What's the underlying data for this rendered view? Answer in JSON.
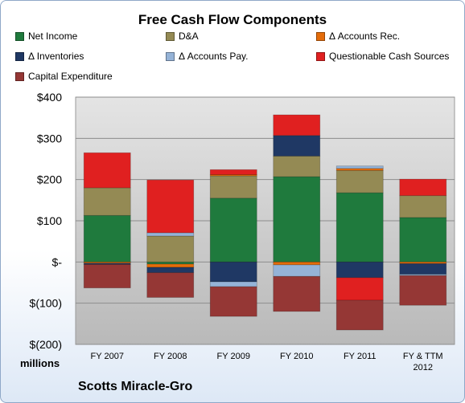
{
  "chart_data": {
    "type": "bar",
    "stacked": true,
    "title": "Free Cash Flow Components",
    "y_unit_label": "millions",
    "source_label": "Scotts Miracle-Gro",
    "categories": [
      [
        "FY 2007"
      ],
      [
        "FY 2008"
      ],
      [
        "FY 2009"
      ],
      [
        "FY 2010"
      ],
      [
        "FY 2011"
      ],
      [
        "FY & TTM",
        "2012"
      ]
    ],
    "ylim": [
      -200,
      400
    ],
    "yticks": [
      {
        "value": 400,
        "label": "$400"
      },
      {
        "value": 300,
        "label": "$300"
      },
      {
        "value": 200,
        "label": "$200"
      },
      {
        "value": 100,
        "label": "$100"
      },
      {
        "value": 0,
        "label": "$-"
      },
      {
        "value": -100,
        "label": "$(100)"
      },
      {
        "value": -200,
        "label": "$(200)"
      }
    ],
    "grid": true,
    "legend_position": "top",
    "series": [
      {
        "name": "Net Income",
        "color": "#1f7a3d",
        "values": [
          113,
          -5,
          155,
          207,
          168,
          108
        ]
      },
      {
        "name": "D&A",
        "color": "#948a54",
        "values": [
          67,
          63,
          54,
          50,
          54,
          53
        ]
      },
      {
        "name": "Δ Accounts Rec.",
        "color": "#e46c0a",
        "values": [
          -3,
          -8,
          3,
          -7,
          5,
          -4
        ]
      },
      {
        "name": "Δ Inventories",
        "color": "#1f3864",
        "values": [
          -3,
          -13,
          -48,
          50,
          -38,
          -26
        ]
      },
      {
        "name": "Δ Accounts Pay.",
        "color": "#95b3d7",
        "values": [
          0,
          8,
          -12,
          -28,
          6,
          -3
        ]
      },
      {
        "name": "Questionable Cash Sources",
        "color": "#e02020",
        "values": [
          85,
          128,
          12,
          50,
          -55,
          40
        ]
      },
      {
        "name": "Capital Expenditure",
        "color": "#953735",
        "values": [
          -57,
          -60,
          -72,
          -85,
          -72,
          -72
        ]
      }
    ]
  }
}
